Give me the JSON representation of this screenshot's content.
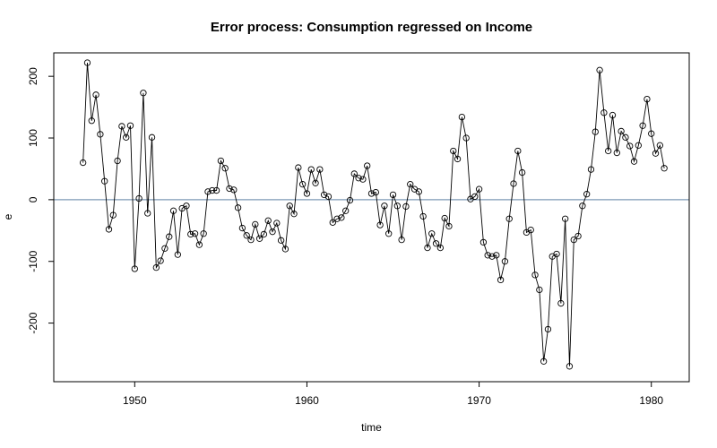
{
  "chart_data": {
    "type": "line",
    "title": "Error process: Consumption regressed on Income",
    "xlabel": "time",
    "ylabel": "e",
    "xlim": [
      1945.3,
      1982.2
    ],
    "ylim": [
      -295,
      238
    ],
    "xticks": [
      1950,
      1960,
      1970,
      1980
    ],
    "yticks": [
      -200,
      -100,
      0,
      100,
      200
    ],
    "xtick_labels": [
      "1950",
      "1960",
      "1970",
      "1980"
    ],
    "ytick_labels": [
      "-200",
      "-100",
      "0",
      "100",
      "200"
    ],
    "reference_line": {
      "y": 0,
      "color": "#7f9ab5"
    },
    "grid": false,
    "markers": "open-circle",
    "series": [
      {
        "start": 1947.0,
        "step": 0.25,
        "values": [
          60,
          222,
          128,
          170,
          106,
          30,
          -48,
          -25,
          63,
          119,
          101,
          120,
          -112,
          2,
          173,
          -22,
          101,
          -110,
          -99,
          -79,
          -60,
          -18,
          -89,
          -14,
          -10,
          -56,
          -55,
          -73,
          -55,
          13,
          15,
          15,
          63,
          51,
          18,
          16,
          -13,
          -46,
          -58,
          -65,
          -40,
          -63,
          -56,
          -34,
          -52,
          -38,
          -66,
          -80,
          -10,
          -23,
          52,
          25,
          10,
          49,
          27,
          49,
          8,
          5,
          -37,
          -31,
          -29,
          -18,
          -1,
          42,
          35,
          33,
          55,
          10,
          12,
          -41,
          -10,
          -55,
          8,
          -10,
          -65,
          -11,
          25,
          17,
          13,
          -27,
          -78,
          -55,
          -71,
          -78,
          -30,
          -43,
          79,
          66,
          134,
          100,
          1,
          5,
          17,
          -69,
          -90,
          -92,
          -90,
          -130,
          -100,
          -31,
          26,
          79,
          44,
          -53,
          -49,
          -122,
          -146,
          -262,
          -210,
          -92,
          -88,
          -168,
          -31,
          -270,
          -65,
          -59,
          -10,
          9,
          49,
          110,
          210,
          141,
          79,
          137,
          76,
          111,
          101,
          87,
          62,
          88,
          120,
          163,
          107,
          75,
          88,
          51
        ]
      }
    ]
  }
}
